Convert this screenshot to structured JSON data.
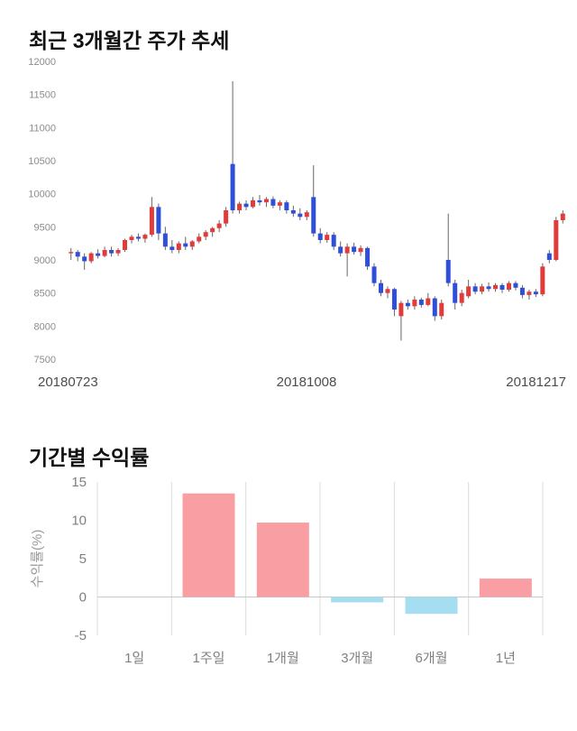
{
  "page": {
    "background": "#ffffff"
  },
  "chart_data": [
    {
      "type": "candlestick",
      "title": "최근 3개월간 주가 추세",
      "x_tick_labels": [
        "20180723",
        "20181008",
        "20181217"
      ],
      "ylim": [
        7500,
        12000
      ],
      "y_ticks": [
        12000,
        11500,
        11000,
        10500,
        10000,
        9500,
        9000,
        8500,
        8000,
        7500
      ],
      "up_color": "#e23b3b",
      "down_color": "#2e4fd8",
      "wick_color": "#666666",
      "legend": "none",
      "grid": "off",
      "candles": [
        [
          9100,
          9180,
          9000,
          9120
        ],
        [
          9120,
          9150,
          8980,
          9050
        ],
        [
          9050,
          9100,
          8850,
          8980
        ],
        [
          8980,
          9120,
          8950,
          9100
        ],
        [
          9100,
          9160,
          9020,
          9060
        ],
        [
          9060,
          9200,
          9040,
          9150
        ],
        [
          9150,
          9200,
          9050,
          9100
        ],
        [
          9100,
          9180,
          9060,
          9150
        ],
        [
          9150,
          9320,
          9120,
          9300
        ],
        [
          9300,
          9380,
          9250,
          9350
        ],
        [
          9350,
          9400,
          9280,
          9320
        ],
        [
          9320,
          9400,
          9260,
          9380
        ],
        [
          9380,
          9950,
          9350,
          9800
        ],
        [
          9800,
          9850,
          9300,
          9400
        ],
        [
          9400,
          9500,
          9150,
          9200
        ],
        [
          9200,
          9300,
          9100,
          9150
        ],
        [
          9150,
          9280,
          9100,
          9250
        ],
        [
          9250,
          9350,
          9150,
          9200
        ],
        [
          9200,
          9300,
          9150,
          9280
        ],
        [
          9280,
          9400,
          9250,
          9350
        ],
        [
          9350,
          9450,
          9300,
          9420
        ],
        [
          9420,
          9500,
          9350,
          9480
        ],
        [
          9480,
          9600,
          9420,
          9550
        ],
        [
          9550,
          9800,
          9500,
          9750
        ],
        [
          10450,
          11700,
          9700,
          9750
        ],
        [
          9750,
          9880,
          9700,
          9850
        ],
        [
          9850,
          9900,
          9750,
          9800
        ],
        [
          9800,
          9950,
          9780,
          9900
        ],
        [
          9900,
          9980,
          9820,
          9870
        ],
        [
          9870,
          9950,
          9800,
          9920
        ],
        [
          9920,
          9960,
          9780,
          9820
        ],
        [
          9820,
          9900,
          9750,
          9870
        ],
        [
          9870,
          9900,
          9700,
          9750
        ],
        [
          9750,
          9820,
          9650,
          9700
        ],
        [
          9700,
          9780,
          9600,
          9650
        ],
        [
          9650,
          9750,
          9600,
          9720
        ],
        [
          9950,
          10430,
          9350,
          9400
        ],
        [
          9400,
          9480,
          9250,
          9300
        ],
        [
          9300,
          9420,
          9260,
          9380
        ],
        [
          9380,
          9420,
          9150,
          9200
        ],
        [
          9200,
          9280,
          9050,
          9100
        ],
        [
          9100,
          9250,
          8750,
          9200
        ],
        [
          9200,
          9260,
          9080,
          9120
        ],
        [
          9120,
          9220,
          9060,
          9180
        ],
        [
          9180,
          9200,
          8850,
          8900
        ],
        [
          8900,
          8950,
          8600,
          8650
        ],
        [
          8650,
          8700,
          8450,
          8500
        ],
        [
          8500,
          8600,
          8420,
          8560
        ],
        [
          8560,
          8580,
          8150,
          8250
        ],
        [
          8150,
          8380,
          7780,
          8350
        ],
        [
          8350,
          8400,
          8250,
          8300
        ],
        [
          8300,
          8450,
          8250,
          8400
        ],
        [
          8400,
          8430,
          8280,
          8320
        ],
        [
          8320,
          8500,
          8300,
          8420
        ],
        [
          8420,
          8450,
          8080,
          8150
        ],
        [
          8150,
          8400,
          8100,
          8350
        ],
        [
          9000,
          9700,
          8600,
          8650
        ],
        [
          8650,
          8700,
          8250,
          8350
        ],
        [
          8350,
          8550,
          8300,
          8500
        ],
        [
          8450,
          8700,
          8420,
          8600
        ],
        [
          8600,
          8650,
          8480,
          8520
        ],
        [
          8520,
          8640,
          8480,
          8600
        ],
        [
          8600,
          8660,
          8520,
          8560
        ],
        [
          8560,
          8650,
          8520,
          8620
        ],
        [
          8620,
          8650,
          8500,
          8550
        ],
        [
          8550,
          8680,
          8520,
          8650
        ],
        [
          8650,
          8680,
          8540,
          8580
        ],
        [
          8580,
          8620,
          8420,
          8470
        ],
        [
          8470,
          8550,
          8400,
          8520
        ],
        [
          8520,
          8560,
          8440,
          8480
        ],
        [
          8480,
          8950,
          8450,
          8900
        ],
        [
          9100,
          9150,
          8950,
          9000
        ],
        [
          9000,
          9650,
          8980,
          9600
        ],
        [
          9600,
          9750,
          9550,
          9700
        ]
      ]
    },
    {
      "type": "bar",
      "title": "기간별 수익률",
      "ylabel": "수익률(%)",
      "categories": [
        "1일",
        "1주일",
        "1개월",
        "3개월",
        "6개월",
        "1년"
      ],
      "values": [
        0,
        13.5,
        9.7,
        -0.7,
        -2.2,
        2.4
      ],
      "ylim": [
        -5,
        15
      ],
      "y_ticks": [
        15,
        10,
        5,
        0,
        -5
      ],
      "pos_color": "#f99fa3",
      "neg_color": "#a5def0",
      "grid": "vertical",
      "legend": "none"
    }
  ]
}
